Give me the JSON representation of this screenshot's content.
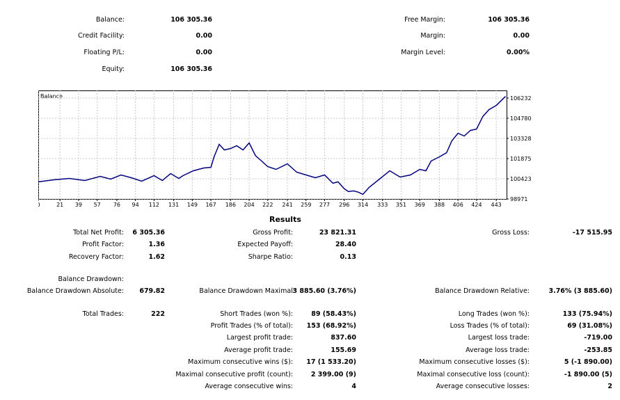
{
  "account": {
    "balance_label": "Balance:",
    "balance": "106 305.36",
    "credit_label": "Credit Facility:",
    "credit": "0.00",
    "floating_label": "Floating P/L:",
    "floating": "0.00",
    "equity_label": "Equity:",
    "equity": "106 305.36",
    "free_margin_label": "Free Margin:",
    "free_margin": "106 305.36",
    "margin_label": "Margin:",
    "margin": "0.00",
    "margin_level_label": "Margin Level:",
    "margin_level": "0.00%"
  },
  "chart_data": {
    "type": "line",
    "title": "Balance",
    "x_ticks": [
      "0",
      "21",
      "39",
      "57",
      "76",
      "94",
      "112",
      "131",
      "149",
      "167",
      "186",
      "204",
      "222",
      "241",
      "259",
      "277",
      "296",
      "314",
      "333",
      "351",
      "369",
      "388",
      "406",
      "424",
      "443"
    ],
    "y_ticks": [
      "106232",
      "104780",
      "103328",
      "101875",
      "100423",
      "98971"
    ],
    "xlim": [
      0,
      453
    ],
    "ylim": [
      98971,
      106780
    ],
    "grid": true,
    "series": [
      {
        "name": "Balance",
        "color": "#00007f",
        "x": [
          0,
          15,
          30,
          45,
          60,
          70,
          80,
          90,
          100,
          112,
          120,
          128,
          136,
          140,
          150,
          160,
          167,
          170,
          175,
          180,
          186,
          192,
          198,
          204,
          210,
          216,
          222,
          230,
          241,
          250,
          259,
          268,
          277,
          285,
          290,
          296,
          300,
          305,
          310,
          314,
          320,
          330,
          340,
          350,
          360,
          369,
          375,
          380,
          388,
          395,
          400,
          406,
          412,
          418,
          424,
          430,
          436,
          443,
          452
        ],
        "y": [
          100200,
          100350,
          100450,
          100300,
          100600,
          100400,
          100700,
          100500,
          100250,
          100650,
          100300,
          100800,
          100450,
          100650,
          101000,
          101200,
          101250,
          102000,
          102900,
          102500,
          102600,
          102800,
          102500,
          103000,
          102100,
          101700,
          101300,
          101100,
          101500,
          100900,
          100700,
          100500,
          100700,
          100100,
          100200,
          99700,
          99500,
          99550,
          99450,
          99300,
          99800,
          100400,
          101000,
          100550,
          100700,
          101100,
          101000,
          101700,
          102000,
          102300,
          103150,
          103700,
          103500,
          103900,
          104000,
          104900,
          105400,
          105700,
          106350
        ]
      }
    ]
  },
  "results_title": "Results",
  "stats": {
    "total_net_profit_label": "Total Net Profit:",
    "total_net_profit": "6 305.36",
    "gross_profit_label": "Gross Profit:",
    "gross_profit": "23 821.31",
    "gross_loss_label": "Gross Loss:",
    "gross_loss": "-17 515.95",
    "profit_factor_label": "Profit Factor:",
    "profit_factor": "1.36",
    "expected_payoff_label": "Expected Payoff:",
    "expected_payoff": "28.40",
    "recovery_factor_label": "Recovery Factor:",
    "recovery_factor": "1.62",
    "sharpe_ratio_label": "Sharpe Ratio:",
    "sharpe_ratio": "0.13",
    "balance_drawdown_label": "Balance Drawdown:",
    "bd_absolute_label": "Balance Drawdown Absolute:",
    "bd_absolute": "679.82",
    "bd_maximal_label": "Balance Drawdown Maximal:",
    "bd_maximal": "3 885.60 (3.76%)",
    "bd_relative_label": "Balance Drawdown Relative:",
    "bd_relative": "3.76% (3 885.60)",
    "total_trades_label": "Total Trades:",
    "total_trades": "222",
    "short_trades_label": "Short Trades (won %):",
    "short_trades": "89 (58.43%)",
    "long_trades_label": "Long Trades (won %):",
    "long_trades": "133 (75.94%)",
    "profit_trades_label": "Profit Trades (% of total):",
    "profit_trades": "153 (68.92%)",
    "loss_trades_label": "Loss Trades (% of total):",
    "loss_trades": "69 (31.08%)",
    "largest_profit_label": "Largest profit trade:",
    "largest_profit": "837.60",
    "largest_loss_label": "Largest loss trade:",
    "largest_loss": "-719.00",
    "avg_profit_label": "Average profit trade:",
    "avg_profit": "155.69",
    "avg_loss_label": "Average loss trade:",
    "avg_loss": "-253.85",
    "max_cons_wins_label": "Maximum consecutive wins ($):",
    "max_cons_wins": "17 (1 533.20)",
    "max_cons_losses_label": "Maximum consecutive losses ($):",
    "max_cons_losses": "5 (-1 890.00)",
    "maximal_cons_profit_label": "Maximal consecutive profit (count):",
    "maximal_cons_profit": "2 399.00 (9)",
    "maximal_cons_loss_label": "Maximal consecutive loss (count):",
    "maximal_cons_loss": "-1 890.00 (5)",
    "avg_cons_wins_label": "Average consecutive wins:",
    "avg_cons_wins": "4",
    "avg_cons_losses_label": "Average consecutive losses:",
    "avg_cons_losses": "2"
  }
}
